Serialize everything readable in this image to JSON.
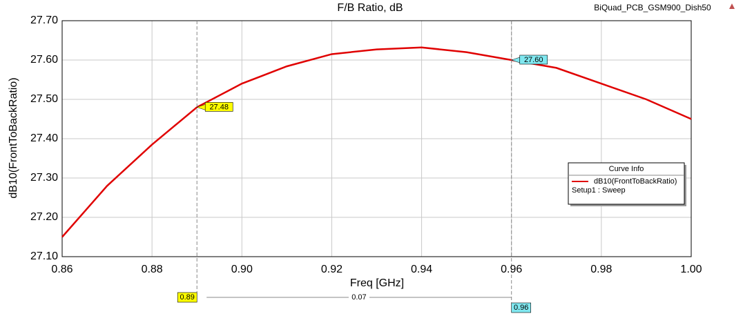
{
  "chart_data": {
    "type": "line",
    "title": "F/B Ratio, dB",
    "project": "BiQuad_PCB_GSM900_Dish50",
    "x_label": "Freq [GHz]",
    "y_label": "dB10(FrontToBackRatio)",
    "x": [
      0.86,
      0.87,
      0.88,
      0.89,
      0.9,
      0.91,
      0.92,
      0.93,
      0.94,
      0.95,
      0.96,
      0.97,
      0.98,
      0.99,
      1.0
    ],
    "series": [
      {
        "name": "dB10(FrontToBackRatio)",
        "color": "#e00000",
        "values": [
          27.15,
          27.28,
          27.385,
          27.48,
          27.54,
          27.584,
          27.615,
          27.627,
          27.632,
          27.62,
          27.6,
          27.58,
          27.54,
          27.5,
          27.45
        ]
      }
    ],
    "legend_title": "Curve Info",
    "legend_subtitle": "Setup1 : Sweep",
    "xlim": [
      0.86,
      1.0
    ],
    "ylim": [
      27.1,
      27.7
    ],
    "xticks": [
      0.86,
      0.88,
      {
        "value": 0.9,
        "label": "0.90"
      },
      0.92,
      0.94,
      0.96,
      0.98,
      {
        "value": 1.0,
        "label": "1.00"
      }
    ],
    "yticks": [
      {
        "value": 27.1,
        "label": "27.10"
      },
      {
        "value": 27.2,
        "label": "27.20"
      },
      {
        "value": 27.3,
        "label": "27.30"
      },
      {
        "value": 27.4,
        "label": "27.40"
      },
      {
        "value": 27.5,
        "label": "27.50"
      },
      {
        "value": 27.6,
        "label": "27.60"
      },
      {
        "value": 27.7,
        "label": "27.70"
      }
    ],
    "grid": true,
    "markers": {
      "x": [
        0.89,
        0.96
      ],
      "y": [
        27.48,
        27.6
      ],
      "y_labels": [
        "27.48",
        "27.60"
      ],
      "colors": [
        "#ffff00",
        "#80e8f0"
      ]
    },
    "delta": 0.07
  }
}
